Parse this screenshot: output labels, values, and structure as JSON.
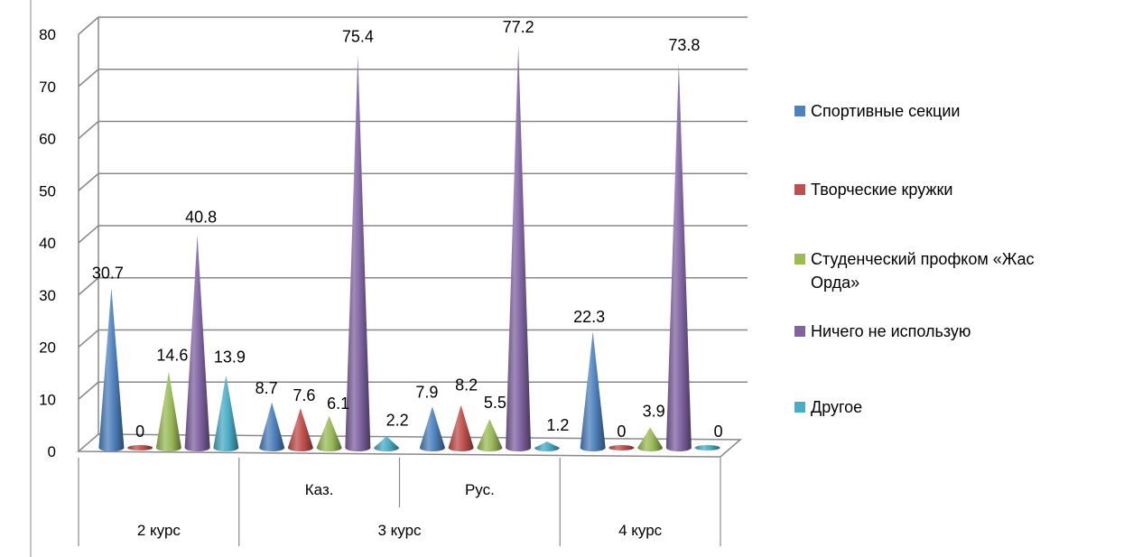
{
  "chart_data": {
    "type": "bar",
    "style": "3d-cone",
    "categories": [
      "2 курс",
      "Каз.",
      "Рус.",
      "4 курс"
    ],
    "category_groups": [
      {
        "label": "2 курс",
        "subcategories": [
          ""
        ]
      },
      {
        "label": "3 курс",
        "subcategories": [
          "Каз.",
          "Рус."
        ]
      },
      {
        "label": "4 курс",
        "subcategories": [
          ""
        ]
      }
    ],
    "series": [
      {
        "name": "Спортивные секции",
        "color": "#4F81BD",
        "values": [
          30.7,
          8.7,
          7.9,
          22.3
        ],
        "labels": [
          "30.7",
          "8.7",
          "7.9",
          "22.3"
        ]
      },
      {
        "name": "Творческие кружки",
        "color": "#C0504D",
        "values": [
          0,
          7.6,
          8.2,
          0
        ],
        "labels": [
          "0",
          "7.6",
          "8.2",
          "0"
        ]
      },
      {
        "name": "Студенческий профком «Жас Орда»",
        "color": "#9BBB59",
        "values": [
          14.6,
          6.1,
          5.5,
          3.9
        ],
        "labels": [
          "14.6",
          "6.1",
          "5.5",
          "3.9"
        ]
      },
      {
        "name": "Ничего не использую",
        "color": "#8064A2",
        "values": [
          40.8,
          75.4,
          77.2,
          73.8
        ],
        "labels": [
          "40.8",
          "75.4",
          "77.2",
          "73.8"
        ]
      },
      {
        "name": "Другое",
        "color": "#4BACC6",
        "values": [
          13.9,
          2.2,
          1.2,
          0
        ],
        "labels": [
          "13.9",
          "2.2",
          "1.2",
          "0"
        ]
      }
    ],
    "yticks": [
      "0",
      "10",
      "20",
      "30",
      "40",
      "50",
      "60",
      "70",
      "80"
    ],
    "ylim": [
      0,
      80
    ],
    "grid": true,
    "legend_position": "right"
  }
}
